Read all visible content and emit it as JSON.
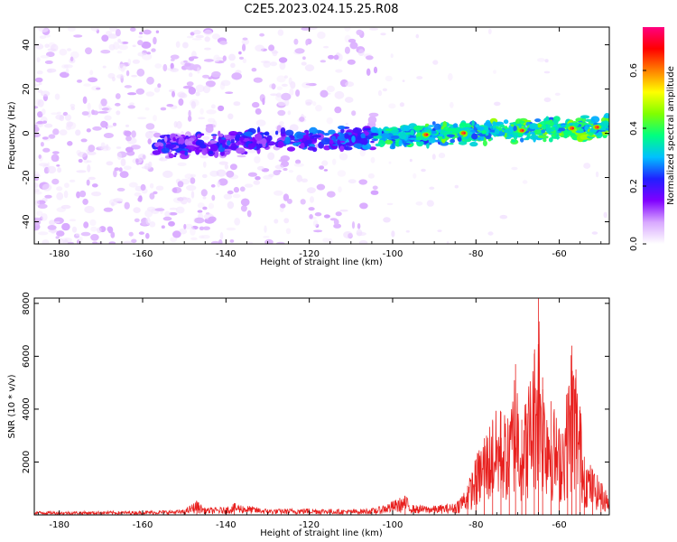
{
  "title": "C2E5.2023.024.15.25.R08",
  "chart_data": [
    {
      "type": "heatmap",
      "xlabel": "Height of straight line (km)",
      "ylabel": "Frequency (Hz)",
      "xlim": [
        -186,
        -48
      ],
      "ylim": [
        -50,
        48
      ],
      "xticks": [
        -180,
        -160,
        -140,
        -120,
        -100,
        -80,
        -60
      ],
      "yticks": [
        -40,
        -20,
        0,
        20,
        40
      ],
      "colorbar": {
        "label": "Normalized spectral amplitude",
        "range": [
          0,
          0.75
        ],
        "ticks": [
          0.0,
          0.2,
          0.4,
          0.6
        ],
        "colormap": [
          "#ffffff",
          "#d8a8ff",
          "#8000ff",
          "#2020ff",
          "#00c0ff",
          "#00ff80",
          "#80ff00",
          "#ffff00",
          "#ff8000",
          "#ff0000",
          "#ff0080"
        ]
      },
      "features": {
        "background_noise_x_range": [
          -186,
          -104
        ],
        "main_band_x_range": [
          -157,
          -48
        ],
        "main_band_freq_start": -6,
        "main_band_freq_end": 3,
        "bright_cores_x": [
          -92,
          -83,
          -69,
          -57,
          -51
        ]
      },
      "grid": false
    },
    {
      "type": "line",
      "xlabel": "Height of straight line (km)",
      "ylabel": "SNR (10 * v/v)",
      "xlim": [
        -186,
        -48
      ],
      "ylim": [
        0,
        8200
      ],
      "xticks": [
        -180,
        -160,
        -140,
        -120,
        -100,
        -80,
        -60
      ],
      "yticks": [
        2000,
        4000,
        6000,
        8000
      ],
      "color": "#e8201e",
      "series": [
        {
          "x": [
            -186,
            -180,
            -170,
            -160,
            -150,
            -147,
            -145,
            -140,
            -138,
            -130,
            -120,
            -110,
            -104,
            -100,
            -97,
            -95,
            -90,
            -85,
            -82,
            -80,
            -78,
            -76,
            -74,
            -72,
            -70.5,
            -69,
            -68,
            -66,
            -65,
            -64,
            -62,
            -60,
            -58,
            -57,
            -56,
            -55,
            -54,
            -52,
            -50,
            -48
          ],
          "values": [
            140,
            120,
            130,
            140,
            180,
            520,
            250,
            280,
            420,
            210,
            240,
            190,
            250,
            500,
            700,
            350,
            330,
            420,
            1100,
            2100,
            2900,
            3600,
            3900,
            3400,
            5700,
            3600,
            4200,
            6100,
            8200,
            5200,
            4300,
            3200,
            4600,
            6400,
            5500,
            4100,
            2200,
            1700,
            1200,
            700
          ]
        }
      ],
      "grid": false
    }
  ]
}
